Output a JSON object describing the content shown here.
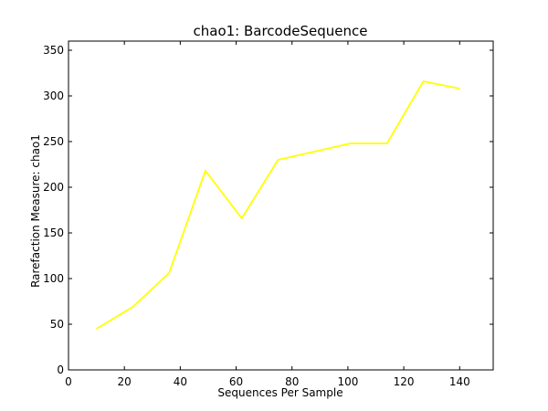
{
  "chart_data": {
    "type": "line",
    "title": "chao1: BarcodeSequence",
    "xlabel": "Sequences Per Sample",
    "ylabel": "Rarefaction Measure: chao1",
    "xlim": [
      0,
      152
    ],
    "ylim": [
      0,
      360
    ],
    "xticks": [
      0,
      20,
      40,
      60,
      80,
      100,
      120,
      140
    ],
    "yticks": [
      0,
      50,
      100,
      150,
      200,
      250,
      300,
      350
    ],
    "grid": false,
    "legend": false,
    "series": [
      {
        "color": "#ffff00",
        "x": [
          10,
          23,
          36,
          49,
          62,
          75,
          101,
          114,
          127,
          140
        ],
        "y": [
          45,
          69,
          106,
          218,
          166,
          230,
          248,
          248,
          316,
          308
        ]
      }
    ]
  }
}
